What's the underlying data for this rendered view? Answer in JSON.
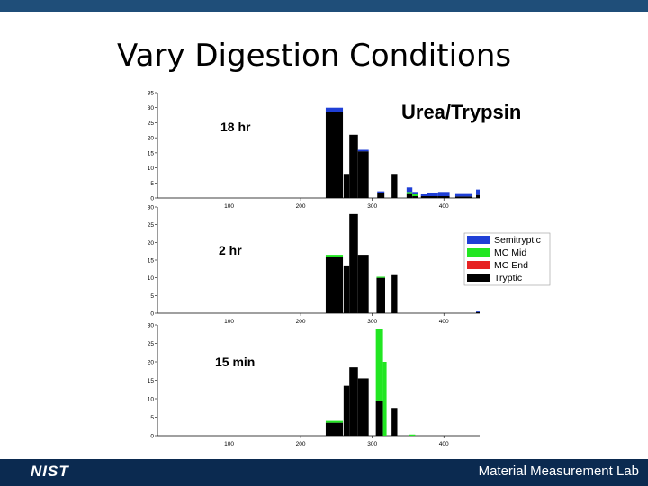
{
  "slide": {
    "title": "Vary Digestion Conditions",
    "footer_logo": "NIST",
    "footer_text": "Material Measurement Lab"
  },
  "chart_data": {
    "type": "bar",
    "stacked": true,
    "title": "Urea/Trypsin",
    "legend": {
      "placement": "right",
      "entries": [
        {
          "name": "Semitryptic",
          "color": "#1f3fd6"
        },
        {
          "name": "MC Mid",
          "color": "#22e622"
        },
        {
          "name": "MC End",
          "color": "#e62222"
        },
        {
          "name": "Tryptic",
          "color": "#000000"
        }
      ]
    },
    "x_ticks": [
      100,
      200,
      300,
      400
    ],
    "xlim": [
      0,
      450
    ],
    "panels": [
      {
        "label": "18 hr",
        "ylim": [
          0,
          35
        ],
        "y_ticks": [
          0,
          5,
          10,
          15,
          20,
          25,
          30,
          35
        ],
        "bars": [
          {
            "x": 235,
            "w": 24,
            "tryptic": 28.5,
            "mc_mid": 0,
            "mc_end": 0,
            "semi": 1.5
          },
          {
            "x": 260,
            "w": 8,
            "tryptic": 8,
            "mc_mid": 0,
            "mc_end": 0,
            "semi": 0
          },
          {
            "x": 268,
            "w": 12,
            "tryptic": 21,
            "mc_mid": 0,
            "mc_end": 0,
            "semi": 0
          },
          {
            "x": 280,
            "w": 15,
            "tryptic": 15.5,
            "mc_mid": 0,
            "mc_end": 0,
            "semi": 0.5
          },
          {
            "x": 307,
            "w": 10,
            "tryptic": 1.5,
            "mc_mid": 0,
            "mc_end": 0,
            "semi": 0.7
          },
          {
            "x": 327,
            "w": 8,
            "tryptic": 8,
            "mc_mid": 0,
            "mc_end": 0,
            "semi": 0
          },
          {
            "x": 348,
            "w": 8,
            "tryptic": 1.3,
            "mc_mid": 0.7,
            "mc_end": 0,
            "semi": 1.5
          },
          {
            "x": 356,
            "w": 8,
            "tryptic": 0.6,
            "mc_mid": 0.6,
            "mc_end": 0,
            "semi": 0.8
          },
          {
            "x": 368,
            "w": 8,
            "tryptic": 0.6,
            "mc_mid": 0,
            "mc_end": 0,
            "semi": 0.6
          },
          {
            "x": 376,
            "w": 16,
            "tryptic": 0.6,
            "mc_mid": 0,
            "mc_end": 0,
            "semi": 1.2
          },
          {
            "x": 392,
            "w": 16,
            "tryptic": 0.6,
            "mc_mid": 0,
            "mc_end": 0,
            "semi": 1.4
          },
          {
            "x": 416,
            "w": 24,
            "tryptic": 0.5,
            "mc_mid": 0,
            "mc_end": 0,
            "semi": 0.8
          },
          {
            "x": 445,
            "w": 5,
            "tryptic": 1,
            "mc_mid": 0,
            "mc_end": 0,
            "semi": 1.8
          }
        ]
      },
      {
        "label": "2 hr",
        "ylim": [
          0,
          30
        ],
        "y_ticks": [
          0,
          5,
          10,
          15,
          20,
          25,
          30
        ],
        "bars": [
          {
            "x": 235,
            "w": 24,
            "tryptic": 16,
            "mc_mid": 0.5,
            "mc_end": 0,
            "semi": 0
          },
          {
            "x": 260,
            "w": 8,
            "tryptic": 13.5,
            "mc_mid": 0,
            "mc_end": 0,
            "semi": 0
          },
          {
            "x": 268,
            "w": 12,
            "tryptic": 28,
            "mc_mid": 0,
            "mc_end": 0,
            "semi": 0
          },
          {
            "x": 280,
            "w": 15,
            "tryptic": 16.5,
            "mc_mid": 0,
            "mc_end": 0,
            "semi": 0
          },
          {
            "x": 306,
            "w": 12,
            "tryptic": 10,
            "mc_mid": 0.3,
            "mc_end": 0,
            "semi": 0
          },
          {
            "x": 327,
            "w": 8,
            "tryptic": 11,
            "mc_mid": 0,
            "mc_end": 0,
            "semi": 0
          },
          {
            "x": 445,
            "w": 5,
            "tryptic": 0.3,
            "mc_mid": 0,
            "mc_end": 0,
            "semi": 0.4
          }
        ]
      },
      {
        "label": "15 min",
        "ylim": [
          0,
          30
        ],
        "y_ticks": [
          0,
          5,
          10,
          15,
          20,
          25,
          30
        ],
        "bars": [
          {
            "x": 235,
            "w": 24,
            "tryptic": 3.5,
            "mc_mid": 0.5,
            "mc_end": 0,
            "semi": 0
          },
          {
            "x": 260,
            "w": 8,
            "tryptic": 13.5,
            "mc_mid": 0,
            "mc_end": 0,
            "semi": 0
          },
          {
            "x": 268,
            "w": 12,
            "tryptic": 18.5,
            "mc_mid": 0,
            "mc_end": 0,
            "semi": 0
          },
          {
            "x": 280,
            "w": 15,
            "tryptic": 15.5,
            "mc_mid": 0,
            "mc_end": 0,
            "semi": 0
          },
          {
            "x": 305,
            "w": 10,
            "tryptic": 9.5,
            "mc_mid": 19.5,
            "mc_end": 0,
            "semi": 0
          },
          {
            "x": 315,
            "w": 5,
            "tryptic": 0,
            "mc_mid": 20,
            "mc_end": 0,
            "semi": 0
          },
          {
            "x": 327,
            "w": 8,
            "tryptic": 7.5,
            "mc_mid": 0,
            "mc_end": 0,
            "semi": 0
          },
          {
            "x": 352,
            "w": 8,
            "tryptic": 0,
            "mc_mid": 0.3,
            "mc_end": 0,
            "semi": 0
          }
        ]
      }
    ]
  }
}
